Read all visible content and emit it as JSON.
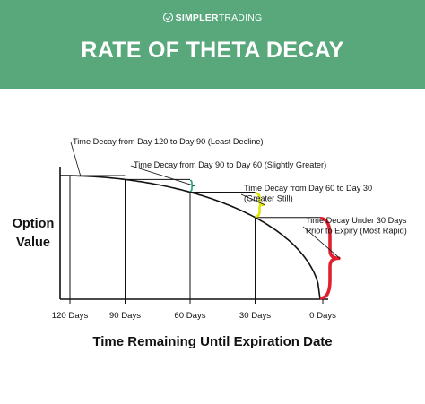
{
  "brand": {
    "bold": "SIMPLER",
    "light": "TRADING"
  },
  "colors": {
    "banner": "#58a87c",
    "green_bracket": "#1fa36a",
    "yellow_bracket": "#e2e600",
    "red_bracket": "#e0202e",
    "ink": "#111111"
  },
  "chart_data": {
    "type": "line",
    "title": "RATE OF THETA DECAY",
    "xlabel": "Time Remaining Until Expiration Date",
    "ylabel_lines": [
      "Option",
      "Value"
    ],
    "x_ticks": [
      "120 Days",
      "90 Days",
      "60 Days",
      "30 Days",
      "0 Days"
    ],
    "x": [
      120,
      90,
      60,
      30,
      0
    ],
    "series": [
      {
        "values": [
          100,
          95,
          82,
          56,
          0
        ]
      }
    ],
    "grid": false,
    "annotations": [
      {
        "text_lines": [
          "Time Decay from Day 120 to Day 90 (Least Decline)"
        ],
        "from": 120,
        "to": 90,
        "bracket": "none"
      },
      {
        "text_lines": [
          "Time Decay from Day 90 to Day 60 (Slightly Greater)"
        ],
        "from": 90,
        "to": 60,
        "bracket": "green"
      },
      {
        "text_lines": [
          "Time Decay from Day 60 to Day 30",
          "(Greater Still)"
        ],
        "from": 60,
        "to": 30,
        "bracket": "yellow"
      },
      {
        "text_lines": [
          "Time Decay Under 30 Days",
          "Prior to Expiry (Most Rapid)"
        ],
        "from": 30,
        "to": 0,
        "bracket": "red"
      }
    ]
  }
}
